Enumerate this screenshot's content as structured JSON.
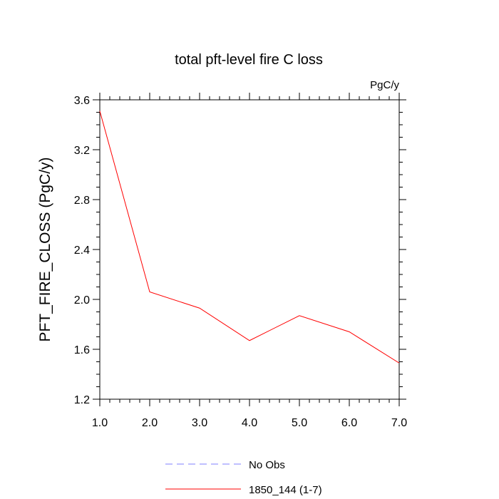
{
  "chart_data": {
    "type": "line",
    "title": "total pft-level fire C loss",
    "units": "PgC/y",
    "xlabel": "",
    "ylabel": "PFT_FIRE_CLOSS  (PgC/y)",
    "xlim": [
      1,
      7
    ],
    "ylim": [
      1.2,
      3.6
    ],
    "xticks": [
      1,
      2,
      3,
      4,
      5,
      6,
      7
    ],
    "xtick_labels": [
      "1.0",
      "2.0",
      "3.0",
      "4.0",
      "5.0",
      "6.0",
      "7.0"
    ],
    "yticks": [
      1.2,
      1.6,
      2.0,
      2.4,
      2.8,
      3.2,
      3.6
    ],
    "ytick_labels": [
      "1.2",
      "1.6",
      "2.0",
      "2.4",
      "2.8",
      "3.2",
      "3.6"
    ],
    "x": [
      1,
      2,
      3,
      4,
      5,
      6,
      7
    ],
    "series": [
      {
        "name": "1850_144 (1-7)",
        "color": "#ff0000",
        "style": "solid",
        "values": [
          3.51,
          2.06,
          1.93,
          1.67,
          1.87,
          1.74,
          1.49
        ]
      }
    ],
    "legend": [
      {
        "label": "No Obs",
        "color": "#8080ff",
        "style": "dashed"
      },
      {
        "label": "1850_144 (1-7)",
        "color": "#ff0000",
        "style": "solid"
      }
    ],
    "legend_position": "bottom-center",
    "grid": false
  }
}
